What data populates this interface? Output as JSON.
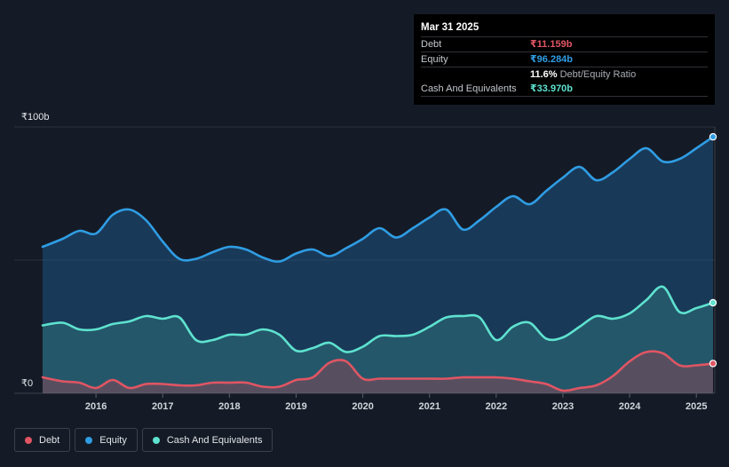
{
  "tooltip": {
    "date": "Mar 31 2025",
    "rows": [
      {
        "label": "Debt",
        "value": "₹11.159b",
        "color": "#e05563"
      },
      {
        "label": "Equity",
        "value": "₹96.284b",
        "color": "#2f9de4"
      },
      {
        "label": "",
        "value": "11.6%",
        "sub": "Debt/Equity Ratio",
        "color": "#ffffff"
      },
      {
        "label": "Cash And Equivalents",
        "value": "₹33.970b",
        "color": "#5ee2cf"
      }
    ]
  },
  "legend": [
    {
      "label": "Debt",
      "color": "#e05563"
    },
    {
      "label": "Equity",
      "color": "#2f9de4"
    },
    {
      "label": "Cash And Equivalents",
      "color": "#5ee2cf"
    }
  ],
  "chart_data": {
    "type": "area",
    "title": "",
    "xlabel": "",
    "ylabel": "",
    "ylim": [
      0,
      100
    ],
    "xlim": [
      2015.2,
      2025.25
    ],
    "y_tick_labels": [
      {
        "value": 100,
        "label": "₹100b"
      },
      {
        "value": 0,
        "label": "₹0"
      }
    ],
    "x_tick_labels": [
      "2016",
      "2017",
      "2018",
      "2019",
      "2020",
      "2021",
      "2022",
      "2023",
      "2024",
      "2025"
    ],
    "x_tick_values": [
      2016,
      2017,
      2018,
      2019,
      2020,
      2021,
      2022,
      2023,
      2024,
      2025
    ],
    "series": [
      {
        "name": "Equity",
        "color": "#2f9de4",
        "x": [
          2015.2,
          2015.5,
          2015.75,
          2016.0,
          2016.25,
          2016.5,
          2016.75,
          2017.0,
          2017.25,
          2017.5,
          2017.75,
          2018.0,
          2018.25,
          2018.5,
          2018.75,
          2019.0,
          2019.25,
          2019.5,
          2019.75,
          2020.0,
          2020.25,
          2020.5,
          2020.75,
          2021.0,
          2021.25,
          2021.5,
          2021.75,
          2022.0,
          2022.25,
          2022.5,
          2022.75,
          2023.0,
          2023.25,
          2023.5,
          2023.75,
          2024.0,
          2024.25,
          2024.5,
          2024.75,
          2025.0,
          2025.25
        ],
        "values": [
          55,
          58,
          61,
          60,
          67,
          69,
          65,
          57,
          50.5,
          50.5,
          53,
          55,
          54,
          51,
          49.5,
          52.5,
          54,
          51.5,
          54.5,
          58,
          62,
          58.5,
          62,
          66,
          69,
          61.5,
          65,
          70,
          74,
          71,
          76,
          81,
          85,
          80,
          83,
          88,
          92,
          87,
          88,
          92,
          96.3
        ]
      },
      {
        "name": "Cash And Equivalents",
        "color": "#5ee2cf",
        "x": [
          2015.2,
          2015.5,
          2015.75,
          2016.0,
          2016.25,
          2016.5,
          2016.75,
          2017.0,
          2017.25,
          2017.5,
          2017.75,
          2018.0,
          2018.25,
          2018.5,
          2018.75,
          2019.0,
          2019.25,
          2019.5,
          2019.75,
          2020.0,
          2020.25,
          2020.5,
          2020.75,
          2021.0,
          2021.25,
          2021.5,
          2021.75,
          2022.0,
          2022.25,
          2022.5,
          2022.75,
          2023.0,
          2023.25,
          2023.5,
          2023.75,
          2024.0,
          2024.25,
          2024.5,
          2024.75,
          2025.0,
          2025.25
        ],
        "values": [
          25.5,
          26.5,
          24,
          24,
          26,
          27,
          29,
          28,
          28.5,
          20,
          20,
          22,
          22,
          24,
          22,
          16,
          17,
          19,
          15.5,
          17.5,
          21.5,
          21.5,
          22,
          25,
          28.5,
          29,
          28.5,
          20,
          25,
          26.5,
          20.5,
          21,
          25,
          29,
          28,
          30,
          35,
          40,
          30.5,
          32,
          34
        ]
      },
      {
        "name": "Debt",
        "color": "#e05563",
        "x": [
          2015.2,
          2015.5,
          2015.75,
          2016.0,
          2016.25,
          2016.5,
          2016.75,
          2017.0,
          2017.25,
          2017.5,
          2017.75,
          2018.0,
          2018.25,
          2018.5,
          2018.75,
          2019.0,
          2019.25,
          2019.5,
          2019.75,
          2020.0,
          2020.25,
          2020.5,
          2020.75,
          2021.0,
          2021.25,
          2021.5,
          2021.75,
          2022.0,
          2022.25,
          2022.5,
          2022.75,
          2023.0,
          2023.25,
          2023.5,
          2023.75,
          2024.0,
          2024.25,
          2024.5,
          2024.75,
          2025.0,
          2025.25
        ],
        "values": [
          6,
          4.5,
          4,
          2,
          5,
          2,
          3.5,
          3.5,
          3,
          3,
          4,
          4,
          4,
          2.5,
          2.5,
          5,
          6,
          11.5,
          12,
          5.5,
          5.5,
          5.5,
          5.5,
          5.5,
          5.5,
          6,
          6,
          6,
          5.5,
          4.5,
          3.5,
          1,
          2,
          3,
          6.5,
          12,
          15.5,
          15,
          10.5,
          10.5,
          11.2
        ]
      }
    ]
  }
}
